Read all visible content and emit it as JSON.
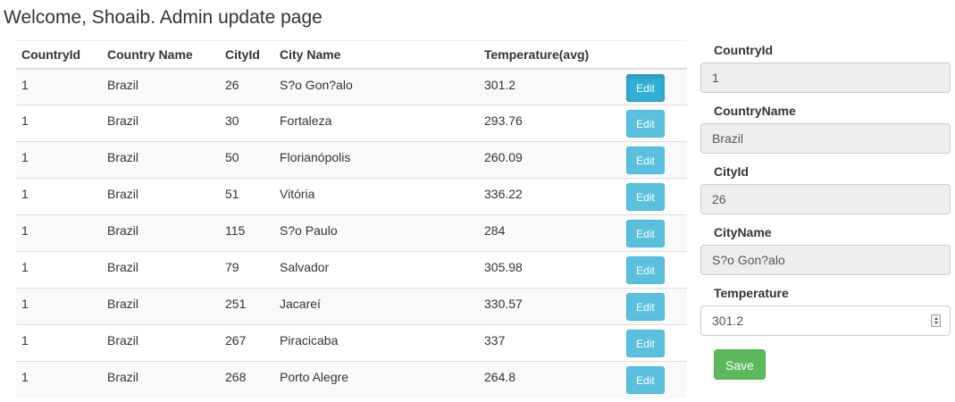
{
  "page": {
    "title": "Welcome, Shoaib. Admin update page"
  },
  "table": {
    "headers": [
      "CountryId",
      "Country Name",
      "CityId",
      "City Name",
      "Temperature(avg)",
      ""
    ],
    "edit_label": "Edit",
    "rows": [
      [
        "1",
        "Brazil",
        "26",
        "S?o Gon?alo",
        "301.2"
      ],
      [
        "1",
        "Brazil",
        "30",
        "Fortaleza",
        "293.76"
      ],
      [
        "1",
        "Brazil",
        "50",
        "Florianópolis",
        "260.09"
      ],
      [
        "1",
        "Brazil",
        "51",
        "Vitória",
        "336.22"
      ],
      [
        "1",
        "Brazil",
        "115",
        "S?o Paulo",
        "284"
      ],
      [
        "1",
        "Brazil",
        "79",
        "Salvador",
        "305.98"
      ],
      [
        "1",
        "Brazil",
        "251",
        "Jacareí",
        "330.57"
      ],
      [
        "1",
        "Brazil",
        "267",
        "Piracicaba",
        "337"
      ],
      [
        "1",
        "Brazil",
        "268",
        "Porto Alegre",
        "264.8"
      ]
    ]
  },
  "form": {
    "country_id": {
      "label": "CountryId",
      "value": "1"
    },
    "country_name": {
      "label": "CountryName",
      "value": "Brazil"
    },
    "city_id": {
      "label": "CityId",
      "value": "26"
    },
    "city_name": {
      "label": "CityName",
      "value": "S?o Gon?alo"
    },
    "temperature": {
      "label": "Temperature",
      "value": "301.2"
    },
    "save_label": "Save"
  },
  "colors": {
    "edit_button": "#5bc0de",
    "save_button": "#5cb85c"
  }
}
